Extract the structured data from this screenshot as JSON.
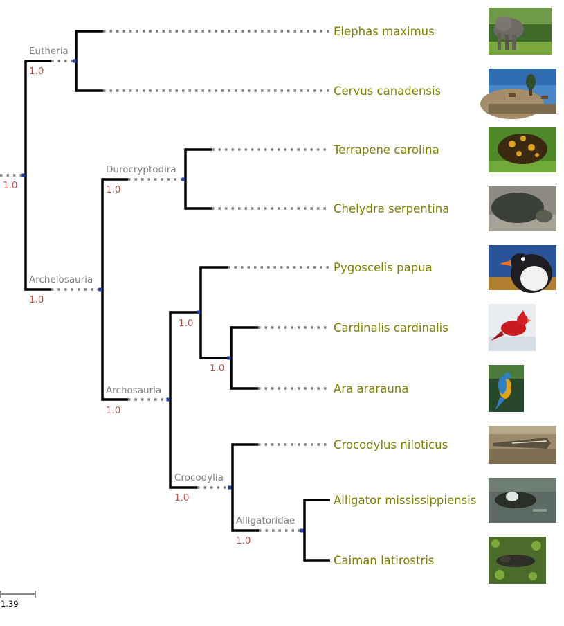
{
  "tree": {
    "root_support": "1.0",
    "clades": [
      {
        "id": "eutheria",
        "name": "Eutheria",
        "support": "1.0"
      },
      {
        "id": "archelosauria",
        "name": "Archelosauria",
        "support": "1.0"
      },
      {
        "id": "durocryptodira",
        "name": "Durocryptodira",
        "support": "1.0"
      },
      {
        "id": "archosauria",
        "name": "Archosauria",
        "support": "1.0"
      },
      {
        "id": "aves",
        "name": "",
        "support": "1.0"
      },
      {
        "id": "cardinalis_ara",
        "name": "",
        "support": "1.0"
      },
      {
        "id": "crocodylia",
        "name": "Crocodylia",
        "support": "1.0"
      },
      {
        "id": "alligatoridae",
        "name": "Alligatoridae",
        "support": "1.0"
      }
    ],
    "leaves": [
      {
        "name": "Elephas maximus",
        "image": "elephant-photo"
      },
      {
        "name": "Cervus canadensis",
        "image": "elk-photo"
      },
      {
        "name": "Terrapene carolina",
        "image": "box-turtle-photo"
      },
      {
        "name": "Chelydra serpentina",
        "image": "snapping-turtle-photo"
      },
      {
        "name": "Pygoscelis papua",
        "image": "gentoo-penguin-photo"
      },
      {
        "name": "Cardinalis cardinalis",
        "image": "cardinal-photo"
      },
      {
        "name": "Ara ararauna",
        "image": "macaw-photo"
      },
      {
        "name": "Crocodylus niloticus",
        "image": "nile-crocodile-photo"
      },
      {
        "name": "Alligator mississippiensis",
        "image": "alligator-photo"
      },
      {
        "name": "Caiman latirostris",
        "image": "caiman-photo"
      }
    ],
    "scale": {
      "label": "1.39"
    }
  },
  "colors": {
    "branch": "#000000",
    "guide": "#808080",
    "node_marker": "#1f3fa8",
    "clade_label": "#808080",
    "support_value": "#c0504d",
    "leaf_label": "#808000"
  }
}
